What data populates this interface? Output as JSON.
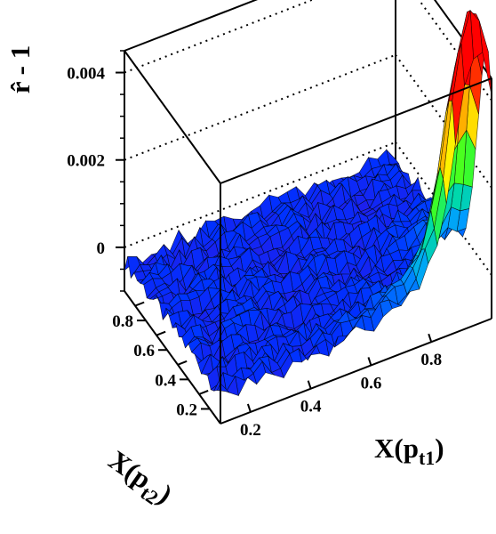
{
  "chart_data": {
    "type": "surface",
    "zlabel": "r̂ - 1",
    "xlabel": "X(p",
    "xlabel_sub": "t1",
    "xlabel_close": ")",
    "ylabel": "X(p",
    "ylabel_sub": "t2",
    "ylabel_close": ")",
    "xlim": [
      0.1,
      1.0
    ],
    "ylim": [
      0.1,
      1.0
    ],
    "zlim": [
      -0.001,
      0.0045
    ],
    "z_ticks": [
      {
        "value": 0.0,
        "label": "0"
      },
      {
        "value": 0.002,
        "label": "0.002"
      },
      {
        "value": 0.004,
        "label": "0.004"
      }
    ],
    "x_ticks": [
      {
        "value": 0.2,
        "label": "0.2"
      },
      {
        "value": 0.4,
        "label": "0.4"
      },
      {
        "value": 0.6,
        "label": "0.6"
      },
      {
        "value": 0.8,
        "label": "0.8"
      }
    ],
    "y_ticks": [
      {
        "value": 0.2,
        "label": "0.2"
      },
      {
        "value": 0.4,
        "label": "0.4"
      },
      {
        "value": 0.6,
        "label": "0.6"
      },
      {
        "value": 0.8,
        "label": "0.8"
      }
    ],
    "surface": {
      "baseline": -0.0003,
      "peak_value": 0.0045,
      "peak_at": {
        "x": 0.95,
        "y": 0.95
      },
      "description_of_shape": "mostly flat near baseline with a sharp rise toward the high-x, high-y corner"
    },
    "colormap": [
      "#5a00c8",
      "#0030ff",
      "#00a0ff",
      "#00e0a0",
      "#40ff20",
      "#ffff00",
      "#ff8000",
      "#ff0000"
    ],
    "grid": false
  }
}
